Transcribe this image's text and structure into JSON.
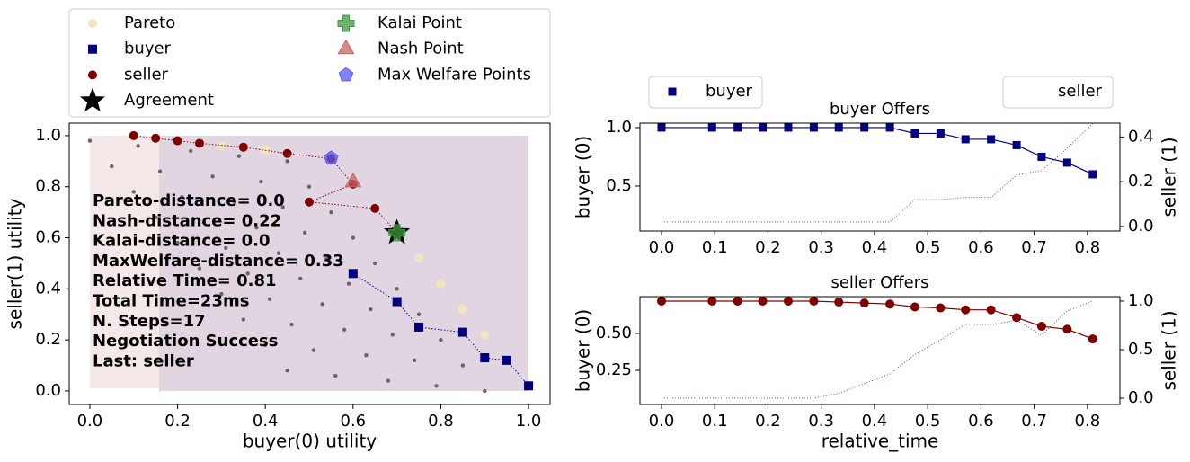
{
  "chart_data": [
    {
      "type": "scatter",
      "xlabel": "buyer(0) utility",
      "ylabel": "seller(1) utility",
      "xlim": [
        -0.047,
        1.049
      ],
      "ylim": [
        -0.053,
        1.049
      ],
      "xticks": [
        {
          "value": 0,
          "label": "0.0"
        },
        0.2,
        0.4,
        0.6,
        0.8,
        {
          "value": 1,
          "label": "1.0"
        }
      ],
      "yticks": [
        {
          "value": 0,
          "label": "0.0"
        },
        0.2,
        0.4,
        0.6,
        0.8,
        {
          "value": 1,
          "label": "1.0"
        }
      ],
      "outcomes": {
        "color": "#6e6368",
        "x": [
          0.0,
          0.11,
          0.23,
          0.34,
          0.45,
          0.05,
          0.16,
          0.28,
          0.39,
          0.5,
          0.1,
          0.21,
          0.33,
          0.44,
          0.55,
          0.15,
          0.26,
          0.38,
          0.49,
          0.6,
          0.2,
          0.31,
          0.43,
          0.54,
          0.65,
          0.25,
          0.36,
          0.48,
          0.59,
          0.7,
          0.3,
          0.41,
          0.53,
          0.64,
          0.75,
          0.35,
          0.46,
          0.58,
          0.69,
          0.8,
          0.4,
          0.51,
          0.63,
          0.74,
          0.85,
          0.45,
          0.56,
          0.68,
          0.79,
          0.9
        ],
        "y": [
          0.98,
          0.96,
          0.94,
          0.92,
          0.9,
          0.88,
          0.86,
          0.84,
          0.82,
          0.8,
          0.78,
          0.76,
          0.74,
          0.72,
          0.7,
          0.68,
          0.66,
          0.64,
          0.62,
          0.6,
          0.58,
          0.56,
          0.54,
          0.52,
          0.5,
          0.48,
          0.46,
          0.44,
          0.42,
          0.4,
          0.38,
          0.36,
          0.34,
          0.32,
          0.3,
          0.28,
          0.26,
          0.24,
          0.22,
          0.2,
          0.18,
          0.16,
          0.14,
          0.12,
          0.1,
          0.08,
          0.06,
          0.04,
          0.02,
          0.0
        ]
      },
      "series": [
        {
          "name": "Pareto",
          "color": "#efe6bf",
          "marker": "circle",
          "x": [
            0.1,
            0.2,
            0.3,
            0.4,
            0.45,
            0.55,
            0.6,
            0.7,
            0.75,
            0.8,
            0.85,
            0.9,
            0.95,
            1.0
          ],
          "y": [
            1.0,
            0.98,
            0.96,
            0.945,
            0.93,
            0.91,
            0.81,
            0.62,
            0.52,
            0.42,
            0.32,
            0.22,
            0.12,
            0.02
          ]
        },
        {
          "name": "buyer",
          "color": "#000080",
          "marker": "square",
          "line": "dotted",
          "x": [
            1.0,
            0.95,
            0.9,
            0.85,
            0.75,
            0.7,
            0.6
          ],
          "y": [
            0.02,
            0.12,
            0.13,
            0.23,
            0.25,
            0.35,
            0.46
          ]
        },
        {
          "name": "seller",
          "color": "#800000",
          "marker": "circle",
          "line": "dotted",
          "x": [
            0.1,
            0.15,
            0.2,
            0.25,
            0.35,
            0.45,
            0.55,
            0.6,
            0.5,
            0.65,
            0.7
          ],
          "y": [
            1.0,
            0.99,
            0.98,
            0.97,
            0.955,
            0.93,
            0.91,
            0.81,
            0.74,
            0.715,
            0.62
          ]
        },
        {
          "name": "Agreement",
          "color": "#000000",
          "marker": "star",
          "x": [
            0.7
          ],
          "y": [
            0.62
          ]
        },
        {
          "name": "Kalai Point",
          "color": "#3d9a3d",
          "marker": "plus",
          "x": [
            0.7
          ],
          "y": [
            0.62
          ]
        },
        {
          "name": "Nash Point",
          "color": "#c86464",
          "marker": "triangle",
          "x": [
            0.6
          ],
          "y": [
            0.817
          ]
        },
        {
          "name": "Max Welfare Points",
          "color": "#5a5af2",
          "marker": "pentagon",
          "x": [
            0.55
          ],
          "y": [
            0.912
          ]
        }
      ],
      "annotation": [
        "Pareto-distance=  0.0",
        "Nash-distance= 0.22",
        "Kalai-distance=  0.0",
        "MaxWelfare-distance= 0.33",
        "Relative Time= 0.81",
        "Total Time=23ms",
        "N. Steps=17",
        "Negotiation Success",
        "Last: seller"
      ]
    },
    {
      "type": "line",
      "title": "buyer Offers",
      "ylabel": "buyer (0)",
      "y2label": "seller (1)",
      "xlim": [
        -0.0405,
        0.861
      ],
      "ylim": [
        0.115,
        1.038
      ],
      "y2lim": [
        -0.0206,
        0.4619
      ],
      "xticks": [
        {
          "value": 0,
          "label": "0.0"
        },
        0.1,
        0.2,
        0.3,
        0.4,
        0.5,
        0.6,
        0.7,
        0.8
      ],
      "yticks": [
        0.5,
        {
          "value": 1,
          "label": "1.0"
        }
      ],
      "y2ticks": [
        {
          "value": 0,
          "label": "0.0"
        },
        0.2,
        0.4
      ],
      "x": [
        0.0,
        0.095,
        0.143,
        0.19,
        0.238,
        0.286,
        0.333,
        0.381,
        0.429,
        0.476,
        0.524,
        0.571,
        0.619,
        0.667,
        0.714,
        0.762,
        0.81
      ],
      "series": [
        {
          "name": "buyer",
          "color": "#000080",
          "marker": "square",
          "line": "solid",
          "values": [
            1,
            1,
            1,
            1,
            1,
            1,
            1,
            1,
            1,
            0.95,
            0.95,
            0.9,
            0.9,
            0.85,
            0.75,
            0.7,
            0.6
          ]
        },
        {
          "name": "seller",
          "color": "#a03040",
          "line": "dotted",
          "axis": "y2",
          "values": [
            0.02,
            0.02,
            0.02,
            0.02,
            0.02,
            0.02,
            0.02,
            0.02,
            0.02,
            0.12,
            0.12,
            0.13,
            0.13,
            0.23,
            0.25,
            0.35,
            0.46
          ]
        }
      ]
    },
    {
      "type": "line",
      "title": "seller Offers",
      "xlabel": "relative_time",
      "ylabel": "buyer (0)",
      "y2label": "seller (1)",
      "xlim": [
        -0.0405,
        0.861
      ],
      "ylim": [
        0.018,
        0.75
      ],
      "y2lim": [
        -0.065,
        1.046
      ],
      "xticks": [
        {
          "value": 0,
          "label": "0.0"
        },
        0.1,
        0.2,
        0.3,
        0.4,
        0.5,
        0.6,
        0.7,
        0.8
      ],
      "yticks": [
        0.25,
        {
          "value": 0.5,
          "label": "0.50"
        }
      ],
      "y2ticks": [
        {
          "value": 0,
          "label": "0.0"
        },
        0.5,
        {
          "value": 1,
          "label": "1.0"
        }
      ],
      "x": [
        0.0,
        0.095,
        0.143,
        0.19,
        0.238,
        0.286,
        0.333,
        0.381,
        0.429,
        0.476,
        0.524,
        0.571,
        0.619,
        0.667,
        0.714,
        0.762,
        0.81
      ],
      "series": [
        {
          "color": "#800000",
          "marker": "circle",
          "line": "solid",
          "axis": "y2",
          "values": [
            1,
            1,
            1,
            1,
            1,
            1,
            0.99,
            0.98,
            0.97,
            0.94,
            0.93,
            0.91,
            0.91,
            0.83,
            0.74,
            0.71,
            0.61
          ]
        },
        {
          "color": "#4040c0",
          "line": "dotted",
          "axis": "y2",
          "values": [
            0,
            0,
            0,
            0,
            0,
            0,
            0.05,
            0.15,
            0.25,
            0.45,
            0.6,
            0.76,
            0.76,
            0.8,
            0.65,
            0.9,
            1.0
          ]
        }
      ]
    }
  ]
}
